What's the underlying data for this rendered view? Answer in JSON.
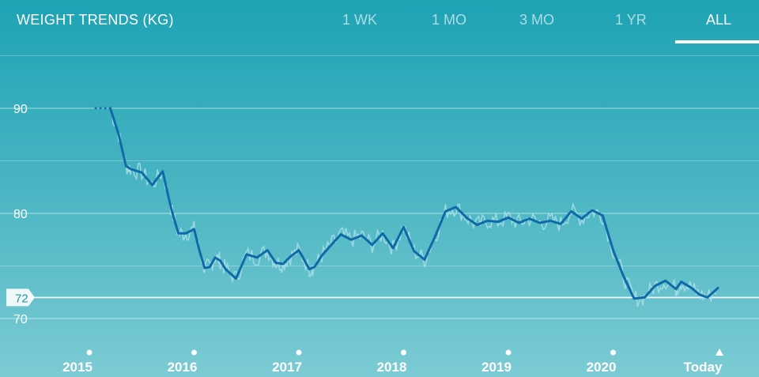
{
  "header": {
    "title": "WEIGHT TRENDS (KG)",
    "tabs": [
      {
        "label": "1 WK",
        "active": false
      },
      {
        "label": "1 MO",
        "active": false
      },
      {
        "label": "3 MO",
        "active": false
      },
      {
        "label": "1 YR",
        "active": false
      },
      {
        "label": "ALL",
        "active": true
      }
    ]
  },
  "colors": {
    "trend_line": "#0f6aa8",
    "daily_line": "#a9dfe5",
    "goal_line": "#ffffff",
    "gridline": "#ffffff"
  },
  "chart_data": {
    "type": "line",
    "title": "WEIGHT TRENDS (KG)",
    "xlabel": "",
    "ylabel": "",
    "ylim": [
      68,
      95
    ],
    "xlim": [
      2014.9,
      2021.5
    ],
    "y_ticks": [
      "70",
      "80",
      "90"
    ],
    "y_tick_values": [
      70,
      80,
      90
    ],
    "x_ticks": [
      "2015",
      "2016",
      "2017",
      "2018",
      "2019",
      "2020",
      "Today"
    ],
    "x_tick_values": [
      2015,
      2016,
      2017,
      2018,
      2019,
      2020,
      2021
    ],
    "goal": {
      "label": "72",
      "value": 72
    },
    "grid": true,
    "legend": "none",
    "series": [
      {
        "x": [
          2015.05,
          2015.1,
          2015.15,
          2015.2
        ],
        "y": [
          90,
          90,
          90,
          90
        ]
      },
      {
        "x": [
          2015.2,
          2015.28,
          2015.35,
          2015.4,
          2015.5,
          2015.6,
          2015.7,
          2015.78,
          2015.85,
          2015.92,
          2016.0,
          2016.05,
          2016.1,
          2016.15,
          2016.2,
          2016.25,
          2016.3,
          2016.4,
          2016.5,
          2016.6,
          2016.7,
          2016.78,
          2016.85,
          2016.92,
          2017.0,
          2017.1,
          2017.15,
          2017.22,
          2017.3,
          2017.4,
          2017.5,
          2017.6,
          2017.7,
          2017.8,
          2017.9,
          2018.0,
          2018.1,
          2018.2,
          2018.3,
          2018.4,
          2018.5,
          2018.6,
          2018.7,
          2018.8,
          2018.9,
          2019.0,
          2019.1,
          2019.2,
          2019.3,
          2019.4,
          2019.5,
          2019.6,
          2019.7,
          2019.8,
          2019.9,
          2020.0,
          2020.1,
          2020.2,
          2020.3,
          2020.4,
          2020.5,
          2020.6,
          2020.65,
          2020.75,
          2020.82,
          2020.9,
          2021.0
        ],
        "y": [
          90,
          87.5,
          84.5,
          84.2,
          83.9,
          82.7,
          84.0,
          80.5,
          78.1,
          78.1,
          78.5,
          76.5,
          74.8,
          74.9,
          75.8,
          75.5,
          74.7,
          73.8,
          76.1,
          75.8,
          76.5,
          75.3,
          75.2,
          75.9,
          76.5,
          74.7,
          74.9,
          76.0,
          76.9,
          78.0,
          77.5,
          77.9,
          77.0,
          78.1,
          76.7,
          78.7,
          76.4,
          75.6,
          77.8,
          80.2,
          80.6,
          79.6,
          78.9,
          79.3,
          79.2,
          79.6,
          79.1,
          79.5,
          79.1,
          79.3,
          79.0,
          80.2,
          79.5,
          80.3,
          79.8,
          76.5,
          74.0,
          71.9,
          72.0,
          73.1,
          73.6,
          72.8,
          73.5,
          72.9,
          72.3,
          72.0,
          72.9
        ]
      }
    ]
  }
}
